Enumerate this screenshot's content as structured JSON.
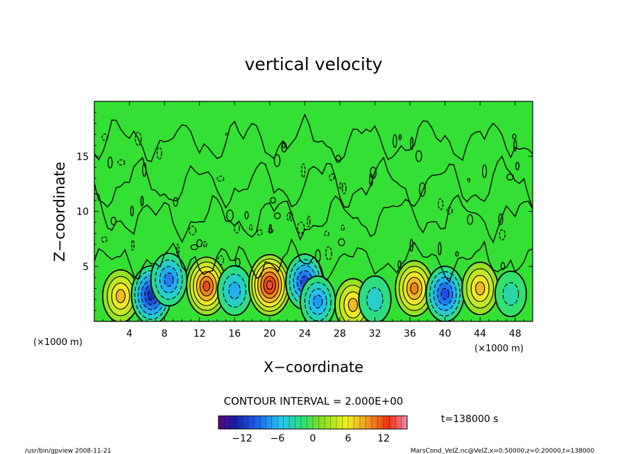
{
  "chart_data": {
    "type": "heatmap",
    "title": "vertical velocity",
    "xlabel": "X−coordinate",
    "ylabel": "Z−coordinate",
    "x_unit_left": "(×1000 m)",
    "x_unit_right": "(×1000 m)",
    "xlim": [
      0,
      50
    ],
    "ylim": [
      0,
      20
    ],
    "xticks": [
      4,
      8,
      12,
      16,
      20,
      24,
      28,
      32,
      36,
      40,
      44,
      48
    ],
    "yticks": [
      5,
      10,
      15
    ],
    "contour_interval_label": "CONTOUR INTERVAL = 2.000E+00",
    "time_label": "t=138000 s",
    "colorbar": {
      "range": [
        -16,
        16
      ],
      "ticks": [
        -12,
        -6,
        0,
        6,
        12
      ],
      "tick_labels": [
        "−12",
        "−6",
        "0",
        "6",
        "12"
      ]
    },
    "cells": [
      {
        "x": 3.0,
        "z": 2.3,
        "w": 8
      },
      {
        "x": 6.5,
        "z": 2.4,
        "w": -12
      },
      {
        "x": 8.5,
        "z": 3.8,
        "w": -8
      },
      {
        "x": 12.8,
        "z": 3.2,
        "w": 12
      },
      {
        "x": 16.0,
        "z": 2.8,
        "w": -6
      },
      {
        "x": 20.0,
        "z": 3.3,
        "w": 14
      },
      {
        "x": 24.0,
        "z": 3.6,
        "w": -10
      },
      {
        "x": 25.5,
        "z": 1.8,
        "w": -7
      },
      {
        "x": 29.5,
        "z": 1.5,
        "w": 8
      },
      {
        "x": 32.0,
        "z": 2.0,
        "w": -4
      },
      {
        "x": 36.5,
        "z": 3.0,
        "w": 10
      },
      {
        "x": 40.0,
        "z": 2.5,
        "w": -10
      },
      {
        "x": 44.0,
        "z": 3.0,
        "w": 8
      },
      {
        "x": 47.5,
        "z": 2.5,
        "w": -3
      }
    ],
    "grid": false
  },
  "footer": {
    "left": "/usr/bin/gpview   2008-11-21",
    "right": "MarsCond_VelZ.nc@VelZ,x=0:50000,z=0:20000,t=138000"
  },
  "colors": {
    "background_field": "#33e033",
    "outline": "#000000"
  }
}
